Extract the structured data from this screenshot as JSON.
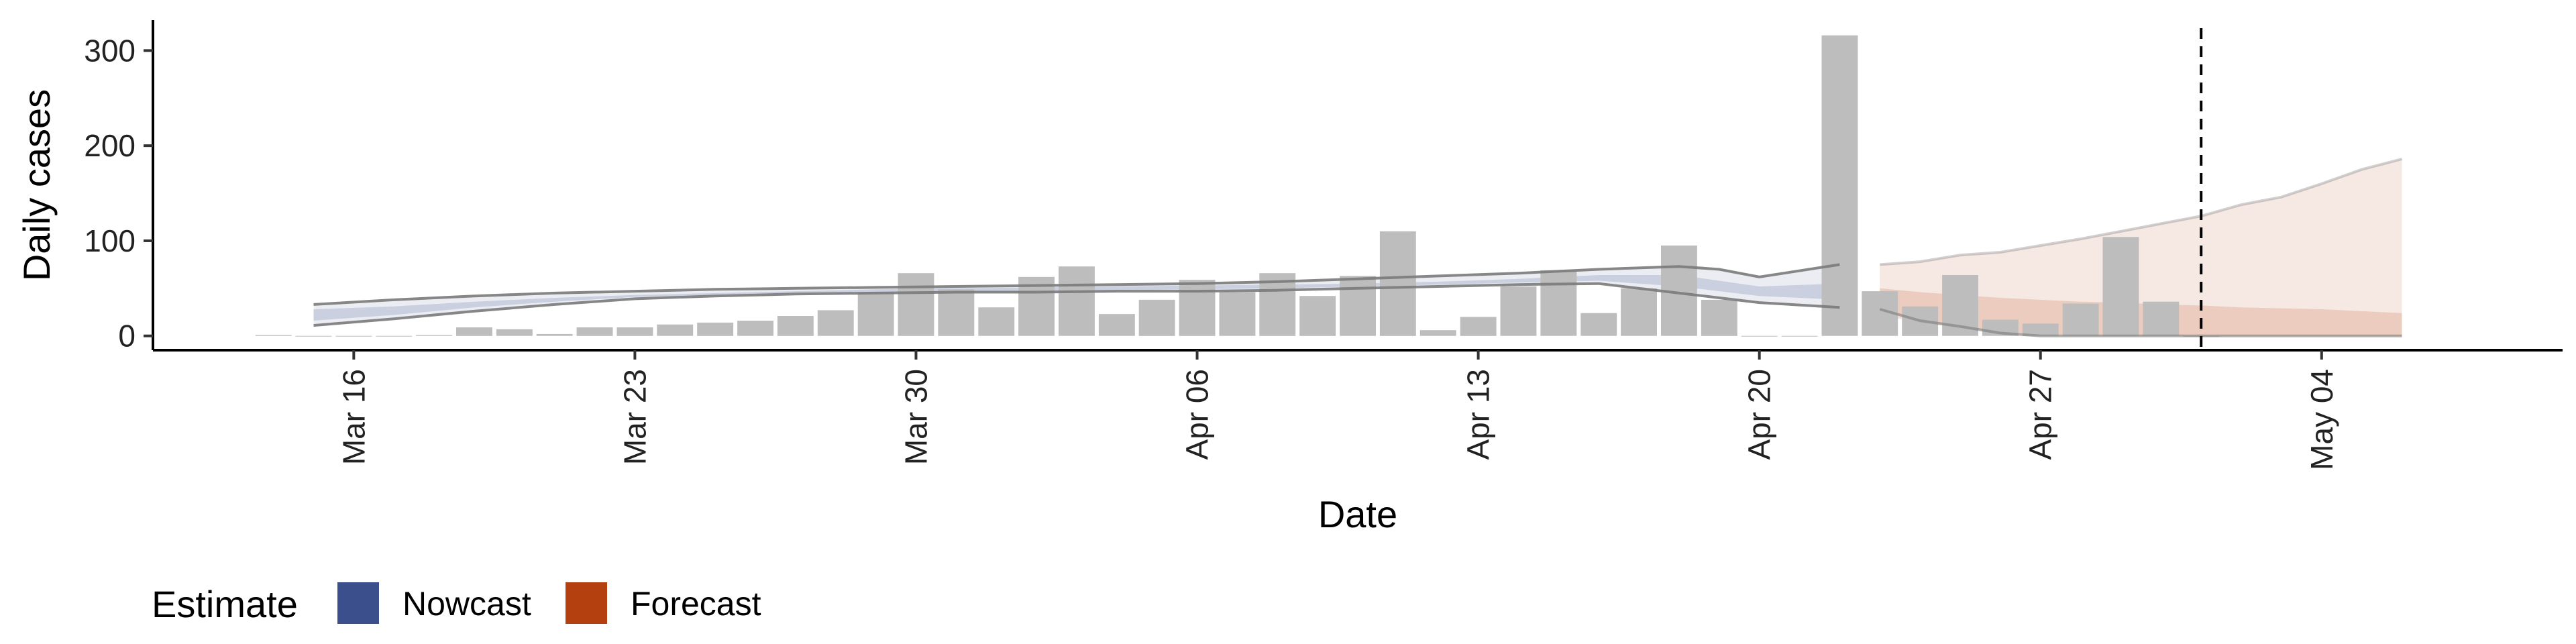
{
  "chart_data": {
    "type": "bar",
    "title": "",
    "xlabel": "Date",
    "ylabel": "Daily cases",
    "x_start": "2020-03-14",
    "xlim": [
      "2020-03-11",
      "2020-05-10"
    ],
    "ylim": [
      -15,
      332
    ],
    "y_ticks": [
      0,
      100,
      200,
      300
    ],
    "x_ticks": [
      {
        "date": "2020-03-16",
        "label": "Mar 16"
      },
      {
        "date": "2020-03-23",
        "label": "Mar 23"
      },
      {
        "date": "2020-03-30",
        "label": "Mar 30"
      },
      {
        "date": "2020-04-06",
        "label": "Apr 06"
      },
      {
        "date": "2020-04-13",
        "label": "Apr 13"
      },
      {
        "date": "2020-04-20",
        "label": "Apr 20"
      },
      {
        "date": "2020-04-27",
        "label": "Apr 27"
      },
      {
        "date": "2020-05-04",
        "label": "May 04"
      }
    ],
    "bars": {
      "dates": [
        "2020-03-14",
        "2020-03-15",
        "2020-03-16",
        "2020-03-17",
        "2020-03-18",
        "2020-03-19",
        "2020-03-20",
        "2020-03-21",
        "2020-03-22",
        "2020-03-23",
        "2020-03-24",
        "2020-03-25",
        "2020-03-26",
        "2020-03-27",
        "2020-03-28",
        "2020-03-29",
        "2020-03-30",
        "2020-03-31",
        "2020-04-01",
        "2020-04-02",
        "2020-04-03",
        "2020-04-04",
        "2020-04-05",
        "2020-04-06",
        "2020-04-07",
        "2020-04-08",
        "2020-04-09",
        "2020-04-10",
        "2020-04-11",
        "2020-04-12",
        "2020-04-13",
        "2020-04-14",
        "2020-04-15",
        "2020-04-16",
        "2020-04-17",
        "2020-04-18",
        "2020-04-19",
        "2020-04-20",
        "2020-04-21",
        "2020-04-22",
        "2020-04-23",
        "2020-04-24",
        "2020-04-25",
        "2020-04-26",
        "2020-04-27",
        "2020-04-28",
        "2020-04-29",
        "2020-04-30",
        "2020-05-01"
      ],
      "values": [
        1,
        0,
        0,
        0,
        1,
        9,
        7,
        2,
        9,
        9,
        12,
        14,
        16,
        21,
        27,
        46,
        66,
        49,
        30,
        62,
        73,
        23,
        38,
        59,
        46,
        66,
        42,
        63,
        110,
        6,
        20,
        52,
        69,
        24,
        50,
        95,
        38,
        0,
        0,
        316,
        47,
        31,
        64,
        17,
        13,
        34,
        104,
        36,
        0
      ]
    },
    "nowcast": {
      "name": "Nowcast",
      "dates": [
        "2020-03-15",
        "2020-03-17",
        "2020-03-19",
        "2020-03-21",
        "2020-03-23",
        "2020-03-25",
        "2020-03-27",
        "2020-03-29",
        "2020-03-31",
        "2020-04-02",
        "2020-04-04",
        "2020-04-06",
        "2020-04-08",
        "2020-04-10",
        "2020-04-12",
        "2020-04-14",
        "2020-04-16",
        "2020-04-18",
        "2020-04-19",
        "2020-04-20",
        "2020-04-22"
      ],
      "upper": [
        33,
        38,
        42,
        45,
        47,
        49,
        50,
        51,
        52,
        53,
        54,
        55,
        57,
        60,
        63,
        66,
        70,
        73,
        70,
        62,
        75
      ],
      "lower": [
        11,
        18,
        26,
        33,
        39,
        42,
        44,
        45,
        46,
        46,
        47,
        47,
        48,
        50,
        52,
        54,
        55,
        45,
        40,
        35,
        30
      ],
      "inner_upper": [
        28,
        31,
        36,
        40,
        43,
        45,
        47,
        49,
        50,
        51,
        52,
        53,
        54,
        55,
        57,
        60,
        64,
        64,
        58,
        52,
        55
      ],
      "inner_lower": [
        16,
        22,
        30,
        36,
        41,
        43,
        45,
        46,
        47,
        47,
        48,
        49,
        50,
        52,
        54,
        56,
        58,
        52,
        47,
        42,
        38
      ],
      "color": "#3b4f8c"
    },
    "forecast": {
      "name": "Forecast",
      "dates": [
        "2020-04-23",
        "2020-04-24",
        "2020-04-25",
        "2020-04-26",
        "2020-04-27",
        "2020-04-28",
        "2020-04-29",
        "2020-04-30",
        "2020-05-01",
        "2020-05-02",
        "2020-05-03",
        "2020-05-04",
        "2020-05-05",
        "2020-05-06"
      ],
      "upper": [
        75,
        78,
        85,
        88,
        95,
        102,
        110,
        118,
        126,
        138,
        146,
        160,
        175,
        186
      ],
      "lower": [
        28,
        16,
        10,
        3,
        0,
        0,
        0,
        0,
        0,
        0,
        0,
        0,
        0,
        0
      ],
      "inner_upper": [
        50,
        46,
        43,
        40,
        38,
        36,
        35,
        33,
        32,
        30,
        29,
        28,
        26,
        24
      ],
      "inner_lower": [
        22,
        14,
        9,
        4,
        2,
        0,
        0,
        0,
        0,
        0,
        0,
        0,
        0,
        0
      ],
      "color": "#b5400f"
    },
    "vline_date": "2020-05-01",
    "legend": {
      "title": "Estimate",
      "placement": "bottom-left",
      "items": [
        {
          "name": "Nowcast",
          "color": "#3b4f8c"
        },
        {
          "name": "Forecast",
          "color": "#b5400f"
        }
      ]
    },
    "colors": {
      "bars": "#bdbdbd",
      "band_line": "#7a7a7a"
    }
  }
}
